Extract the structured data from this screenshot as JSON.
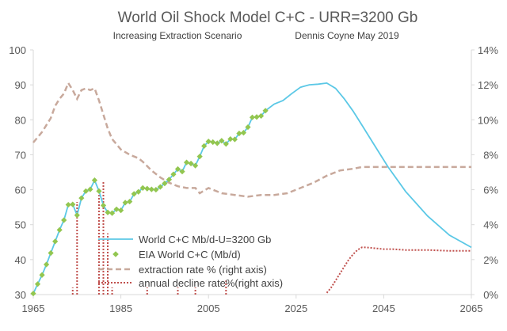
{
  "chart_data": {
    "type": "line",
    "title": "World Oil Shock Model C+C - URR=3200 Gb",
    "subtitle_left": "Increasing Extraction Scenario",
    "subtitle_right": "Dennis Coyne May 2019",
    "x_ticks": [
      1965,
      1985,
      2005,
      2025,
      2045,
      2065
    ],
    "y_left_ticks": [
      30,
      40,
      50,
      60,
      70,
      80,
      90,
      100
    ],
    "y_right_ticks": [
      "0%",
      "2%",
      "4%",
      "6%",
      "8%",
      "10%",
      "12%",
      "14%"
    ],
    "xlim": [
      1965,
      2065
    ],
    "ylim_left": [
      30,
      100
    ],
    "ylim_right": [
      0,
      14
    ],
    "grid": "none",
    "legend_position": "bottom-center",
    "colors": {
      "model": "#5bc8e6",
      "eia": "#92c650",
      "extraction": "#c8a99c",
      "decline": "#c0504d",
      "axis": "#d9d9d9",
      "text": "#595959"
    },
    "series": [
      {
        "name": "World C+C Mb/d-U=3200 Gb",
        "axis": "left",
        "style": "solid",
        "x": [
          1965,
          1966,
          1967,
          1968,
          1969,
          1970,
          1971,
          1972,
          1973,
          1974,
          1975,
          1976,
          1977,
          1978,
          1979,
          1980,
          1981,
          1982,
          1983,
          1984,
          1985,
          1986,
          1987,
          1988,
          1989,
          1990,
          1991,
          1992,
          1993,
          1994,
          1995,
          1996,
          1997,
          1998,
          1999,
          2000,
          2001,
          2002,
          2003,
          2004,
          2005,
          2006,
          2007,
          2008,
          2009,
          2010,
          2011,
          2012,
          2013,
          2014,
          2015,
          2016,
          2017,
          2018,
          2020,
          2022,
          2024,
          2026,
          2028,
          2030,
          2032,
          2034,
          2036,
          2038,
          2040,
          2043,
          2046,
          2050,
          2055,
          2060,
          2065
        ],
        "values": [
          30.3,
          33,
          35.6,
          38.6,
          41.9,
          45.2,
          48.5,
          51.3,
          55.7,
          55.8,
          52.7,
          57.6,
          59.6,
          60.1,
          62.7,
          59.6,
          55.5,
          53.5,
          53.3,
          54.4,
          54.1,
          56.3,
          56.6,
          58.8,
          59.4,
          60.5,
          60.3,
          60.1,
          60,
          60.8,
          61.8,
          62.9,
          64.4,
          65.9,
          65.2,
          67.8,
          67.5,
          66.9,
          69.5,
          72.5,
          73.8,
          73.6,
          73.3,
          74,
          73.1,
          74.5,
          74.4,
          76.1,
          76.3,
          77.9,
          80.7,
          80.8,
          81.1,
          82.6,
          84.5,
          85.5,
          87.5,
          89.3,
          90,
          90.2,
          90.5,
          89,
          86,
          82.5,
          78.5,
          72.5,
          66.5,
          59.5,
          52.5,
          47,
          43.5
        ]
      },
      {
        "name": "EIA World C+C (Mb/d)",
        "axis": "left",
        "style": "markers",
        "x": [
          1965,
          1966,
          1967,
          1968,
          1969,
          1970,
          1971,
          1972,
          1973,
          1974,
          1975,
          1976,
          1977,
          1978,
          1979,
          1980,
          1981,
          1982,
          1983,
          1984,
          1985,
          1986,
          1987,
          1988,
          1989,
          1990,
          1991,
          1992,
          1993,
          1994,
          1995,
          1996,
          1997,
          1998,
          1999,
          2000,
          2001,
          2002,
          2003,
          2004,
          2005,
          2006,
          2007,
          2008,
          2009,
          2010,
          2011,
          2012,
          2013,
          2014,
          2015,
          2016,
          2017,
          2018
        ],
        "values": [
          30.3,
          33,
          35.6,
          38.6,
          41.9,
          45.2,
          48.5,
          51.3,
          55.7,
          55.8,
          52.7,
          57.6,
          59.6,
          60.1,
          62.7,
          59.6,
          55.5,
          53.5,
          53.3,
          54.4,
          54.1,
          56.3,
          56.6,
          58.8,
          59.4,
          60.5,
          60.3,
          60.1,
          60,
          60.8,
          61.8,
          62.9,
          64.4,
          65.9,
          65.2,
          67.8,
          67.5,
          66.9,
          69.5,
          72.5,
          73.8,
          73.6,
          73.3,
          74,
          73.1,
          74.5,
          74.4,
          76.1,
          76.3,
          77.9,
          80.7,
          80.8,
          81.1,
          82.6
        ]
      },
      {
        "name": "extraction rate % (right axis)",
        "axis": "right",
        "style": "dashed",
        "x": [
          1965,
          1967,
          1969,
          1970,
          1971,
          1972,
          1973,
          1974,
          1975,
          1976,
          1977,
          1978,
          1979,
          1980,
          1981,
          1982,
          1983,
          1984,
          1985,
          1987,
          1989,
          1990,
          1992,
          1994,
          1996,
          1998,
          2000,
          2002,
          2003,
          2005,
          2008,
          2011,
          2014,
          2017,
          2020,
          2023,
          2026,
          2029,
          2032,
          2035,
          2038,
          2040,
          2045,
          2050,
          2055,
          2060,
          2065
        ],
        "values": [
          8.7,
          9.3,
          10.1,
          10.8,
          11.2,
          11.5,
          12.1,
          11.7,
          11.2,
          11.7,
          11.8,
          11.7,
          11.8,
          11.1,
          10.3,
          9.5,
          8.9,
          8.6,
          8.3,
          8,
          7.8,
          7.6,
          7.1,
          6.7,
          6.4,
          6.2,
          6.1,
          6.1,
          5.8,
          6.1,
          5.8,
          5.7,
          5.6,
          5.7,
          5.7,
          5.8,
          6.1,
          6.4,
          6.8,
          7.1,
          7.2,
          7.3,
          7.3,
          7.3,
          7.3,
          7.3,
          7.3
        ]
      },
      {
        "name": "annual decline rate%(right axis)",
        "axis": "right",
        "style": "dotted",
        "x": [
          2032,
          2033,
          2034,
          2035,
          2036,
          2037,
          2038,
          2039,
          2040,
          2041,
          2043,
          2045,
          2047,
          2050,
          2055,
          2060,
          2065
        ],
        "values": [
          0.1,
          0.4,
          0.8,
          1.2,
          1.6,
          2.0,
          2.3,
          2.55,
          2.7,
          2.7,
          2.65,
          2.6,
          2.6,
          2.55,
          2.55,
          2.5,
          2.5
        ]
      }
    ],
    "decline_spikes": [
      {
        "x": 1974,
        "value": 0.4
      },
      {
        "x": 1975,
        "value": 5.3
      },
      {
        "x": 1980,
        "value": 5.7
      },
      {
        "x": 1981,
        "value": 6.5
      },
      {
        "x": 1982,
        "value": 3.5
      },
      {
        "x": 1983,
        "value": 0.4
      },
      {
        "x": 1991,
        "value": 0.4
      },
      {
        "x": 1998,
        "value": 0.4
      },
      {
        "x": 2002,
        "value": 0.4
      },
      {
        "x": 2009,
        "value": 0.8
      }
    ]
  }
}
